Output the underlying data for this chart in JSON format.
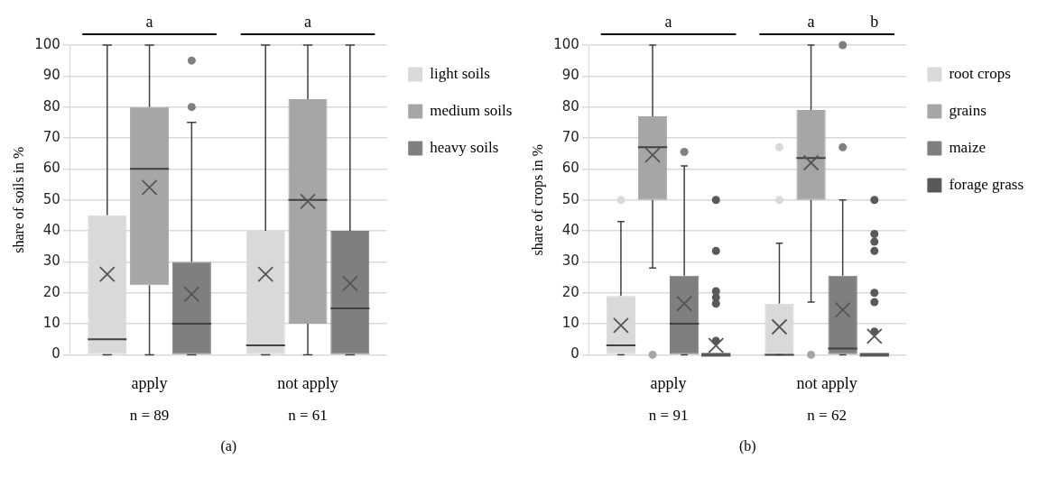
{
  "chart_data": [
    {
      "type": "box",
      "ylabel": "share of soils in %",
      "categories": [
        "apply",
        "not apply"
      ],
      "ylim": [
        0,
        100
      ],
      "yticks": [
        0,
        10,
        20,
        30,
        40,
        50,
        60,
        70,
        80,
        90,
        100
      ],
      "grid": "y",
      "legend": "right",
      "annotations": [
        "a",
        "a",
        "n = 89",
        "n = 61",
        "(a)"
      ],
      "series": [
        {
          "name": "light soils",
          "color": "#d9d9d9",
          "boxes": [
            {
              "low": 0,
              "q1": 0,
              "median": 5,
              "q3": 45,
              "high": 100,
              "mean": 26
            },
            {
              "low": 0,
              "q1": 0,
              "median": 3,
              "q3": 40,
              "high": 100,
              "mean": 26
            }
          ]
        },
        {
          "name": "medium soils",
          "color": "#a6a6a6",
          "boxes": [
            {
              "low": 0,
              "q1": 22.5,
              "median": 60,
              "q3": 80,
              "high": 100,
              "mean": 54
            },
            {
              "low": 0,
              "q1": 10,
              "median": 50,
              "q3": 82.5,
              "high": 100,
              "mean": 49.5
            }
          ]
        },
        {
          "name": "heavy soils",
          "color": "#7f7f7f",
          "boxes": [
            {
              "low": 0,
              "q1": 0,
              "median": 10,
              "q3": 30,
              "high": 75,
              "mean": 19.5,
              "outliers": [
                80,
                95
              ]
            },
            {
              "low": 0,
              "q1": 0,
              "median": 15,
              "q3": 40,
              "high": 100,
              "mean": 23
            }
          ]
        }
      ]
    },
    {
      "type": "box",
      "ylabel": "share of crops in %",
      "categories": [
        "apply",
        "not apply"
      ],
      "ylim": [
        0,
        100
      ],
      "yticks": [
        0,
        10,
        20,
        30,
        40,
        50,
        60,
        70,
        80,
        90,
        100
      ],
      "grid": "y",
      "legend": "right",
      "annotations": [
        "a",
        "a",
        "b",
        "n = 91",
        "n = 62",
        "(b)"
      ],
      "series": [
        {
          "name": "root crops",
          "color": "#d9d9d9",
          "boxes": [
            {
              "low": 0,
              "q1": 0,
              "median": 3,
              "q3": 19,
              "high": 43,
              "mean": 9.5,
              "outliers": [
                50
              ]
            },
            {
              "low": 0,
              "q1": 0,
              "median": 0,
              "q3": 16.5,
              "high": 36,
              "mean": 9,
              "outliers": [
                50,
                67
              ]
            }
          ]
        },
        {
          "name": "grains",
          "color": "#a6a6a6",
          "boxes": [
            {
              "low": 28,
              "q1": 50,
              "median": 67,
              "q3": 77,
              "high": 100,
              "mean": 64.5,
              "outliers": [
                0
              ]
            },
            {
              "low": 17,
              "q1": 50,
              "median": 63.5,
              "q3": 79,
              "high": 100,
              "mean": 62,
              "outliers": [
                0
              ]
            }
          ]
        },
        {
          "name": "maize",
          "color": "#7f7f7f",
          "boxes": [
            {
              "low": 0,
              "q1": 0,
              "median": 10,
              "q3": 25.5,
              "high": 61,
              "mean": 16.5,
              "outliers": [
                65.5
              ]
            },
            {
              "low": 0,
              "q1": 0,
              "median": 2,
              "q3": 25.5,
              "high": 50,
              "mean": 14.5,
              "outliers": [
                67,
                100
              ]
            }
          ]
        },
        {
          "name": "forage grass",
          "color": "#595959",
          "boxes": [
            {
              "low": 0,
              "q1": 0,
              "median": 0,
              "q3": 0,
              "high": 0,
              "mean": 3,
              "outliers": [
                4.5,
                16.5,
                18.5,
                20.5,
                33.5,
                50
              ]
            },
            {
              "low": 0,
              "q1": 0,
              "median": 0,
              "q3": 0,
              "high": 0,
              "mean": 6,
              "outliers": [
                7.5,
                17,
                20,
                33.5,
                36.5,
                39,
                50
              ]
            }
          ]
        }
      ]
    }
  ]
}
